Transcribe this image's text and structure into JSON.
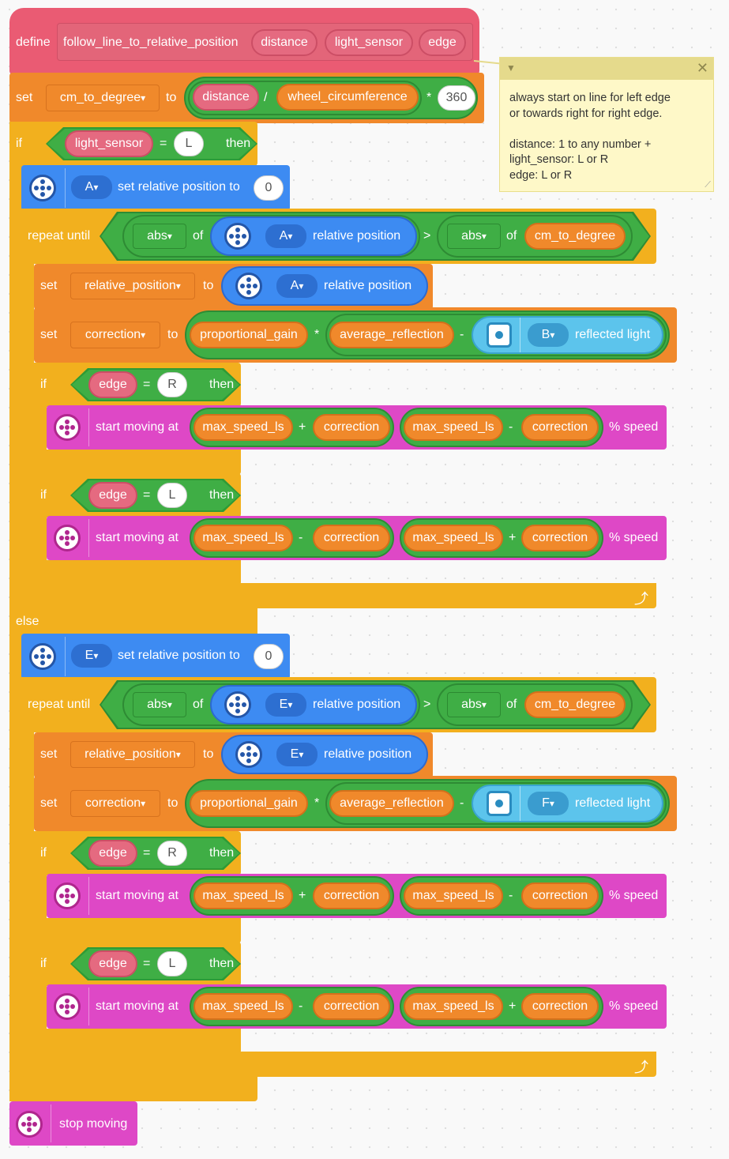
{
  "define": {
    "keyword": "define",
    "name": "follow_line_to_relative_position",
    "params": [
      "distance",
      "light_sensor",
      "edge"
    ]
  },
  "note": {
    "text": "always start on line for left edge\nor towards right for right edge.\n\ndistance: 1 to any number +\nlight_sensor: L or R\nedge: L or R"
  },
  "set_cm": {
    "set": "set",
    "var": "cm_to_degree",
    "to": "to",
    "a": "distance",
    "div": "/",
    "b": "wheel_circumference",
    "mul": "*",
    "c": "360"
  },
  "if1": {
    "if": "if",
    "var": "light_sensor",
    "eq": "=",
    "val": "L",
    "then": "then"
  },
  "else": "else",
  "branches": [
    {
      "port": "A",
      "reset": "set relative position to",
      "reset_val": "0",
      "repeat": "repeat until",
      "abs": "abs",
      "of": "of",
      "rel": "relative position",
      "gt": ">",
      "target": "cm_to_degree",
      "set": "set",
      "relvar": "relative_position",
      "to": "to",
      "corr": "correction",
      "gain": "proportional_gain",
      "mul": "*",
      "avg": "average_reflection",
      "minus": "-",
      "sport": "B",
      "refl": "reflected light",
      "edgeR": {
        "if": "if",
        "arg": "edge",
        "eq": "=",
        "val": "R",
        "then": "then",
        "move": "start moving at",
        "a": "max_speed_ls",
        "op1": "+",
        "b": "correction",
        "c": "max_speed_ls",
        "op2": "-",
        "d": "correction",
        "pct": "% speed"
      },
      "edgeL": {
        "if": "if",
        "arg": "edge",
        "eq": "=",
        "val": "L",
        "then": "then",
        "move": "start moving at",
        "a": "max_speed_ls",
        "op1": "-",
        "b": "correction",
        "c": "max_speed_ls",
        "op2": "+",
        "d": "correction",
        "pct": "% speed"
      }
    },
    {
      "port": "E",
      "reset": "set relative position to",
      "reset_val": "0",
      "repeat": "repeat until",
      "abs": "abs",
      "of": "of",
      "rel": "relative position",
      "gt": ">",
      "target": "cm_to_degree",
      "set": "set",
      "relvar": "relative_position",
      "to": "to",
      "corr": "correction",
      "gain": "proportional_gain",
      "mul": "*",
      "avg": "average_reflection",
      "minus": "-",
      "sport": "F",
      "refl": "reflected light",
      "edgeR": {
        "if": "if",
        "arg": "edge",
        "eq": "=",
        "val": "R",
        "then": "then",
        "move": "start moving at",
        "a": "max_speed_ls",
        "op1": "+",
        "b": "correction",
        "c": "max_speed_ls",
        "op2": "-",
        "d": "correction",
        "pct": "% speed"
      },
      "edgeL": {
        "if": "if",
        "arg": "edge",
        "eq": "=",
        "val": "L",
        "then": "then",
        "move": "start moving at",
        "a": "max_speed_ls",
        "op1": "-",
        "b": "correction",
        "c": "max_speed_ls",
        "op2": "+",
        "d": "correction",
        "pct": "% speed"
      }
    }
  ],
  "stop": "stop moving",
  "colors": {
    "define": "#ea5b73",
    "control": "#f2b01e",
    "variable": "#f0892b",
    "operator": "#3fae45",
    "motor": "#3d8bf2",
    "movement": "#de48c6",
    "sensor": "#5cc4ec"
  }
}
